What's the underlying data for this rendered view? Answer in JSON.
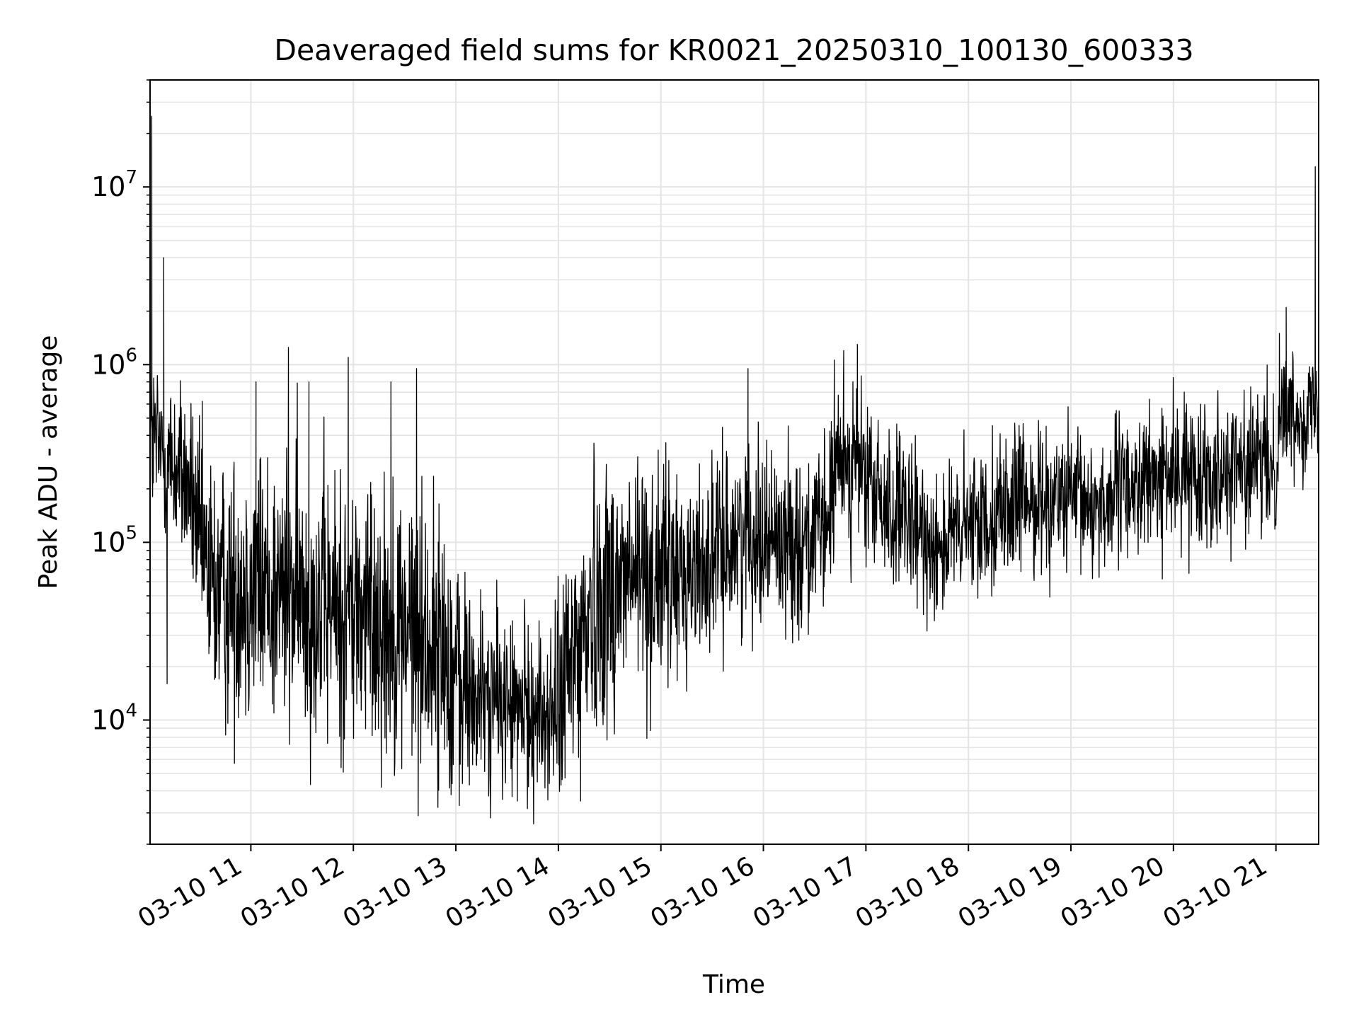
{
  "chart_data": {
    "type": "line",
    "title": "Deaveraged field sums for KR0021_20250310_100130_600333",
    "xlabel": "Time",
    "ylabel": "Peak ADU - average",
    "x_range": [
      "03-10 10:01",
      "03-10 21:25"
    ],
    "y_scale": "log",
    "ylim": [
      2000,
      40000000
    ],
    "grid": true,
    "line_color": "#000000",
    "x_ticks": [
      {
        "label": "03-10 11",
        "hour": 11
      },
      {
        "label": "03-10 12",
        "hour": 12
      },
      {
        "label": "03-10 13",
        "hour": 13
      },
      {
        "label": "03-10 14",
        "hour": 14
      },
      {
        "label": "03-10 15",
        "hour": 15
      },
      {
        "label": "03-10 16",
        "hour": 16
      },
      {
        "label": "03-10 17",
        "hour": 17
      },
      {
        "label": "03-10 18",
        "hour": 18
      },
      {
        "label": "03-10 19",
        "hour": 19
      },
      {
        "label": "03-10 20",
        "hour": 20
      },
      {
        "label": "03-10 21",
        "hour": 21
      }
    ],
    "y_ticks": [
      {
        "base": "10",
        "exp": "4",
        "value": 10000
      },
      {
        "base": "10",
        "exp": "5",
        "value": 100000
      },
      {
        "base": "10",
        "exp": "6",
        "value": 1000000
      },
      {
        "base": "10",
        "exp": "7",
        "value": 10000000
      }
    ],
    "series": [
      {
        "time": [
          "03-10 10:01",
          "03-10 10:03",
          "03-10 10:05",
          "03-10 10:09",
          "03-10 10:13",
          "03-10 10:18",
          "03-10 10:24",
          "03-10 10:30",
          "03-10 10:36",
          "03-10 10:45",
          "03-10 10:55",
          "03-10 11:10",
          "03-10 11:25",
          "03-10 11:40",
          "03-10 11:55",
          "03-10 12:10",
          "03-10 12:25",
          "03-10 12:40",
          "03-10 12:55",
          "03-10 13:05",
          "03-10 13:15",
          "03-10 13:25",
          "03-10 13:35",
          "03-10 13:45",
          "03-10 13:55",
          "03-10 14:00",
          "03-10 14:10",
          "03-10 14:20",
          "03-10 14:35",
          "03-10 14:50",
          "03-10 15:05",
          "03-10 15:20",
          "03-10 15:35",
          "03-10 15:50",
          "03-10 16:05",
          "03-10 16:20",
          "03-10 16:35",
          "03-10 16:45",
          "03-10 16:55",
          "03-10 17:05",
          "03-10 17:15",
          "03-10 17:30",
          "03-10 17:45",
          "03-10 18:00",
          "03-10 18:15",
          "03-10 18:30",
          "03-10 18:45",
          "03-10 19:00",
          "03-10 19:15",
          "03-10 19:30",
          "03-10 19:45",
          "03-10 20:00",
          "03-10 20:15",
          "03-10 20:30",
          "03-10 20:45",
          "03-10 21:00",
          "03-10 21:03",
          "03-10 21:10",
          "03-10 21:20",
          "03-10 21:25"
        ],
        "center": [
          400000,
          380000,
          350000,
          300000,
          280000,
          250000,
          200000,
          100000,
          60000,
          50000,
          60000,
          55000,
          50000,
          45000,
          40000,
          40000,
          35000,
          30000,
          22000,
          15000,
          13000,
          13000,
          12000,
          11000,
          10500,
          12000,
          25000,
          45000,
          60000,
          65000,
          65000,
          70000,
          90000,
          120000,
          110000,
          100000,
          110000,
          300000,
          280000,
          180000,
          150000,
          110000,
          100000,
          120000,
          150000,
          170000,
          180000,
          170000,
          160000,
          200000,
          220000,
          240000,
          250000,
          260000,
          270000,
          270000,
          600000,
          500000,
          550000,
          600000
        ],
        "spread": [
          0.55,
          0.45,
          0.45,
          0.45,
          0.45,
          0.45,
          0.45,
          0.55,
          0.65,
          0.7,
          0.7,
          0.72,
          0.72,
          0.72,
          0.72,
          0.72,
          0.72,
          0.72,
          0.72,
          0.6,
          0.5,
          0.45,
          0.45,
          0.45,
          0.45,
          0.55,
          0.72,
          0.72,
          0.7,
          0.65,
          0.55,
          0.5,
          0.45,
          0.45,
          0.45,
          0.45,
          0.45,
          0.45,
          0.42,
          0.4,
          0.42,
          0.4,
          0.38,
          0.38,
          0.38,
          0.38,
          0.36,
          0.36,
          0.36,
          0.36,
          0.36,
          0.36,
          0.36,
          0.36,
          0.36,
          0.36,
          0.3,
          0.3,
          0.3,
          0.3
        ]
      }
    ],
    "spikes": [
      {
        "time": "03-10 10:02",
        "value": 25000000
      },
      {
        "time": "03-10 10:09",
        "value": 4000000
      },
      {
        "time": "03-10 10:11",
        "value": 16000
      },
      {
        "time": "03-10 11:03",
        "value": 800000
      },
      {
        "time": "03-10 11:22",
        "value": 1250000
      },
      {
        "time": "03-10 11:34",
        "value": 800000
      },
      {
        "time": "03-10 11:57",
        "value": 1100000
      },
      {
        "time": "03-10 12:22",
        "value": 800000
      },
      {
        "time": "03-10 12:37",
        "value": 950000
      },
      {
        "time": "03-10 13:02",
        "value": 3300
      },
      {
        "time": "03-10 13:36",
        "value": 3500
      },
      {
        "time": "03-10 14:13",
        "value": 3500
      },
      {
        "time": "03-10 15:51",
        "value": 950000
      },
      {
        "time": "03-10 16:47",
        "value": 1200000
      },
      {
        "time": "03-10 16:55",
        "value": 1300000
      },
      {
        "time": "03-10 21:02",
        "value": 1500000
      },
      {
        "time": "03-10 21:06",
        "value": 2100000
      },
      {
        "time": "03-10 21:23",
        "value": 13000000
      }
    ]
  }
}
